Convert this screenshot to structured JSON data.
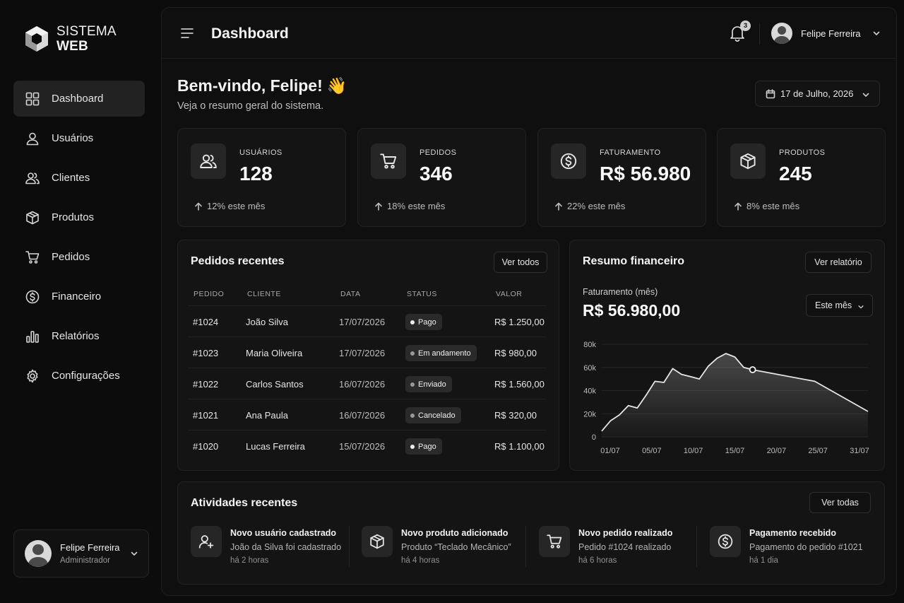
{
  "logo": {
    "line1": "SISTEMA",
    "line2": "WEB"
  },
  "nav": [
    {
      "label": "Dashboard",
      "icon": "grid-icon",
      "active": true
    },
    {
      "label": "Usuários",
      "icon": "user-icon"
    },
    {
      "label": "Clientes",
      "icon": "users-icon"
    },
    {
      "label": "Produtos",
      "icon": "box-icon"
    },
    {
      "label": "Pedidos",
      "icon": "cart-icon"
    },
    {
      "label": "Financeiro",
      "icon": "dollar-icon"
    },
    {
      "label": "Relatórios",
      "icon": "bar-chart-icon"
    },
    {
      "label": "Configurações",
      "icon": "gear-icon"
    }
  ],
  "sidebar_user": {
    "name": "Felipe Ferreira",
    "role": "Administrador"
  },
  "header": {
    "title": "Dashboard",
    "notifications": "3",
    "user_name": "Felipe Ferreira"
  },
  "welcome": {
    "title": "Bem-vindo, Felipe!",
    "emoji": "👋",
    "subtitle": "Veja o resumo geral do sistema.",
    "date": "17 de Julho, 2026"
  },
  "stats": [
    {
      "label": "USUÁRIOS",
      "value": "128",
      "trend": "12% este mês",
      "icon": "users-icon"
    },
    {
      "label": "PEDIDOS",
      "value": "346",
      "trend": "18% este mês",
      "icon": "cart-icon"
    },
    {
      "label": "FATURAMENTO",
      "value": "R$ 56.980",
      "trend": "22% este mês",
      "icon": "dollar-icon"
    },
    {
      "label": "PRODUTOS",
      "value": "245",
      "trend": "8% este mês",
      "icon": "box-icon"
    }
  ],
  "orders": {
    "title": "Pedidos recentes",
    "view_all": "Ver todos",
    "columns": [
      "PEDIDO",
      "CLIENTE",
      "DATA",
      "STATUS",
      "VALOR"
    ],
    "rows": [
      {
        "id": "#1024",
        "client": "João Silva",
        "date": "17/07/2026",
        "status": "Pago",
        "value": "R$ 1.250,00"
      },
      {
        "id": "#1023",
        "client": "Maria Oliveira",
        "date": "17/07/2026",
        "status": "Em andamento",
        "value": "R$ 980,00"
      },
      {
        "id": "#1022",
        "client": "Carlos Santos",
        "date": "16/07/2026",
        "status": "Enviado",
        "value": "R$ 1.560,00"
      },
      {
        "id": "#1021",
        "client": "Ana Paula",
        "date": "16/07/2026",
        "status": "Cancelado",
        "value": "R$ 320,00"
      },
      {
        "id": "#1020",
        "client": "Lucas Ferreira",
        "date": "15/07/2026",
        "status": "Pago",
        "value": "R$ 1.100,00"
      }
    ]
  },
  "finance": {
    "title": "Resumo financeiro",
    "report_btn": "Ver relatório",
    "label": "Faturamento (mês)",
    "value": "R$ 56.980,00",
    "period": "Este mês"
  },
  "chart_data": {
    "type": "area",
    "title": "",
    "xlabel": "",
    "ylabel": "",
    "x_ticks": [
      "01/07",
      "05/07",
      "10/07",
      "15/07",
      "20/07",
      "25/07",
      "31/07"
    ],
    "y_ticks": [
      "0",
      "20k",
      "40k",
      "60k",
      "80k"
    ],
    "ylim": [
      0,
      80000
    ],
    "xlim": [
      1,
      31
    ],
    "x": [
      1,
      2,
      3,
      4,
      5,
      6,
      7,
      8,
      9,
      10,
      11,
      12,
      13,
      14,
      15,
      16,
      17,
      18,
      25,
      31
    ],
    "values": [
      5000,
      14000,
      19000,
      27000,
      25000,
      36000,
      48000,
      47000,
      59000,
      54000,
      52000,
      50000,
      61000,
      68000,
      72000,
      69000,
      60000,
      58000,
      48000,
      22000
    ],
    "highlight_index": 17,
    "grid": true,
    "line_color": "#e6e6e6"
  },
  "activities": {
    "title": "Atividades recentes",
    "view_all": "Ver todas",
    "items": [
      {
        "title": "Novo usuário cadastrado",
        "desc": "João da Silva foi cadastrado",
        "time": "há 2 horas",
        "icon": "user-plus-icon"
      },
      {
        "title": "Novo produto adicionado",
        "desc": "Produto “Teclado Mecânico”",
        "time": "há 4 horas",
        "icon": "box-icon"
      },
      {
        "title": "Novo pedido realizado",
        "desc": "Pedido #1024 realizado",
        "time": "há 6 horas",
        "icon": "cart-icon"
      },
      {
        "title": "Pagamento recebido",
        "desc": "Pagamento do pedido #1021",
        "time": "há 1 dia",
        "icon": "dollar-icon"
      }
    ]
  }
}
